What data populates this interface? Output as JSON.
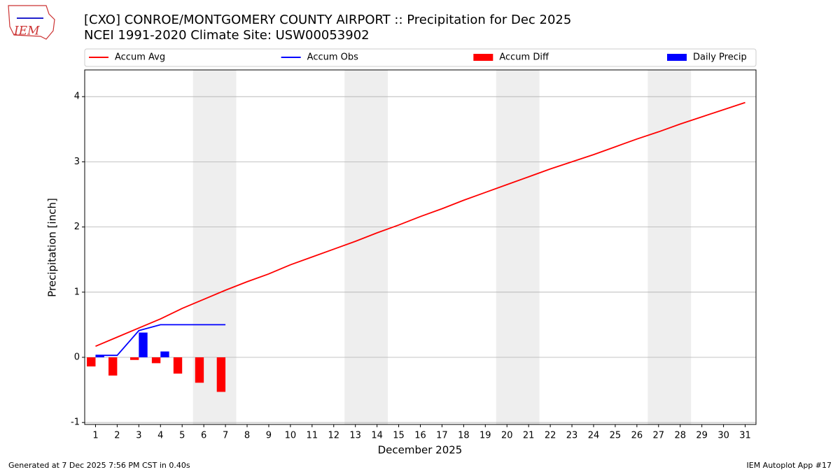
{
  "logo": {
    "text": "IEM"
  },
  "footer": {
    "left": "Generated at 7 Dec 2025 7:56 PM CST in 0.40s",
    "right": "IEM Autoplot App #17"
  },
  "chart_data": {
    "type": "line",
    "title": "[CXO] CONROE/MONTGOMERY COUNTY AIRPORT :: Precipitation for Dec 2025",
    "subtitle": "NCEI 1991-2020 Climate Site: USW00053902",
    "x_label": "December 2025",
    "y_label": "Precipitation [inch]",
    "x": [
      1,
      2,
      3,
      4,
      5,
      6,
      7,
      8,
      9,
      10,
      11,
      12,
      13,
      14,
      15,
      16,
      17,
      18,
      19,
      20,
      21,
      22,
      23,
      24,
      25,
      26,
      27,
      28,
      29,
      30,
      31
    ],
    "xlim": [
      0.5,
      31.5
    ],
    "xticks": [
      1,
      2,
      3,
      4,
      5,
      6,
      7,
      8,
      9,
      10,
      11,
      12,
      13,
      14,
      15,
      16,
      17,
      18,
      19,
      20,
      21,
      22,
      23,
      24,
      25,
      26,
      27,
      28,
      29,
      30,
      31
    ],
    "ylim": [
      -1.03,
      4.41
    ],
    "yticks": [
      -1,
      0,
      1,
      2,
      3,
      4
    ],
    "grid": true,
    "legend": "top",
    "highlight_days": [
      [
        6,
        7
      ],
      [
        13,
        14
      ],
      [
        20,
        21
      ],
      [
        27,
        28
      ]
    ],
    "series": [
      {
        "name": "Accum Avg",
        "kind": "line",
        "color": "#ff0000",
        "values": [
          0.17,
          0.31,
          0.45,
          0.59,
          0.75,
          0.89,
          1.03,
          1.16,
          1.28,
          1.42,
          1.54,
          1.66,
          1.78,
          1.91,
          2.03,
          2.16,
          2.28,
          2.41,
          2.53,
          2.65,
          2.77,
          2.89,
          3.0,
          3.11,
          3.23,
          3.35,
          3.46,
          3.58,
          3.69,
          3.8,
          3.91
        ]
      },
      {
        "name": "Accum Obs",
        "kind": "line",
        "color": "#0000ff",
        "values": [
          0.03,
          0.03,
          0.41,
          0.5,
          0.5,
          0.5,
          0.5,
          null,
          null,
          null,
          null,
          null,
          null,
          null,
          null,
          null,
          null,
          null,
          null,
          null,
          null,
          null,
          null,
          null,
          null,
          null,
          null,
          null,
          null,
          null,
          null
        ]
      },
      {
        "name": "Accum Diff",
        "kind": "bar",
        "side": "left",
        "color": "#ff0000",
        "values": [
          -0.14,
          -0.28,
          -0.04,
          -0.09,
          -0.25,
          -0.39,
          -0.53,
          null,
          null,
          null,
          null,
          null,
          null,
          null,
          null,
          null,
          null,
          null,
          null,
          null,
          null,
          null,
          null,
          null,
          null,
          null,
          null,
          null,
          null,
          null,
          null
        ]
      },
      {
        "name": "Daily Precip",
        "kind": "bar",
        "side": "right",
        "color": "#0000ff",
        "values": [
          0.03,
          0,
          0.38,
          0.09,
          0,
          0,
          0,
          null,
          null,
          null,
          null,
          null,
          null,
          null,
          null,
          null,
          null,
          null,
          null,
          null,
          null,
          null,
          null,
          null,
          null,
          null,
          null,
          null,
          null,
          null,
          null
        ]
      }
    ]
  }
}
